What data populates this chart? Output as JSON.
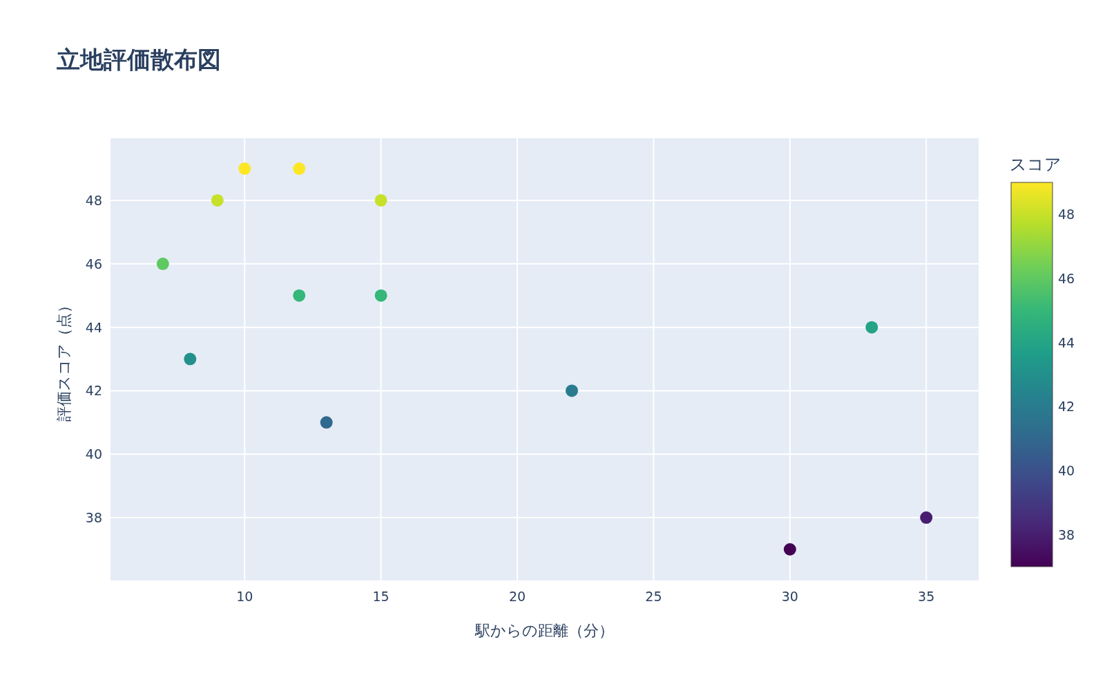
{
  "chart_data": {
    "type": "scatter",
    "title": "立地評価散布図",
    "xlabel": "駅からの距離（分）",
    "ylabel": "評価スコア（点）",
    "clabel": "スコア",
    "x": [
      7,
      8,
      9,
      10,
      12,
      12,
      13,
      15,
      15,
      22,
      30,
      33,
      35
    ],
    "values": [
      46,
      43,
      48,
      49,
      49,
      45,
      41,
      48,
      45,
      42,
      37,
      44,
      38
    ],
    "cvalues": [
      46,
      43,
      48,
      49,
      49,
      45,
      41,
      48,
      45,
      42,
      37,
      44,
      38
    ],
    "xlim": [
      5.08,
      36.92
    ],
    "ylim": [
      36.02,
      49.96
    ],
    "xticks": [
      10,
      15,
      20,
      25,
      30,
      35
    ],
    "yticks": [
      38,
      40,
      42,
      44,
      46,
      48
    ],
    "clim": [
      37,
      49
    ],
    "cticks": [
      38,
      40,
      42,
      44,
      46,
      48
    ],
    "grid": true,
    "marker": "circle"
  }
}
